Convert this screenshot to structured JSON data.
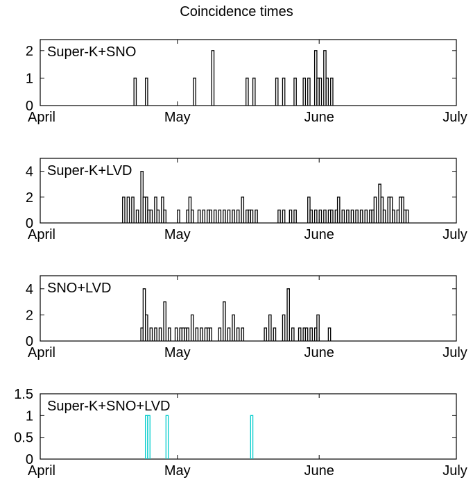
{
  "title": "Coincidence times",
  "chart_data": [
    {
      "type": "step",
      "label": "Super-K+SNO",
      "color": "#000000",
      "x_ticks": [
        "April",
        "May",
        "June",
        "July"
      ],
      "y_ticks": [
        "0",
        "1",
        "2"
      ],
      "ylim": [
        0,
        2.4
      ],
      "bins": [
        {
          "day": 20.5,
          "count": 1
        },
        {
          "day": 23,
          "count": 1
        },
        {
          "day": 33.5,
          "count": 1
        },
        {
          "day": 37.5,
          "count": 2
        },
        {
          "day": 45,
          "count": 1
        },
        {
          "day": 46.5,
          "count": 1
        },
        {
          "day": 51.5,
          "count": 1
        },
        {
          "day": 53,
          "count": 1
        },
        {
          "day": 55.5,
          "count": 1
        },
        {
          "day": 57.5,
          "count": 1
        },
        {
          "day": 58.5,
          "count": 1
        },
        {
          "day": 60,
          "count": 2
        },
        {
          "day": 60.5,
          "count": 1
        },
        {
          "day": 61,
          "count": 1
        },
        {
          "day": 62,
          "count": 2
        },
        {
          "day": 62.5,
          "count": 1
        },
        {
          "day": 63.5,
          "count": 1
        }
      ]
    },
    {
      "type": "step",
      "label": "Super-K+LVD",
      "color": "#000000",
      "x_ticks": [
        "April",
        "May",
        "June",
        "July"
      ],
      "y_ticks": [
        "0",
        "2",
        "4"
      ],
      "ylim": [
        0,
        5
      ],
      "bins": [
        {
          "day": 18,
          "count": 2
        },
        {
          "day": 19,
          "count": 2
        },
        {
          "day": 20,
          "count": 2
        },
        {
          "day": 21,
          "count": 1
        },
        {
          "day": 22,
          "count": 4
        },
        {
          "day": 22.5,
          "count": 2
        },
        {
          "day": 23,
          "count": 2
        },
        {
          "day": 23.5,
          "count": 1
        },
        {
          "day": 24,
          "count": 1
        },
        {
          "day": 25,
          "count": 2
        },
        {
          "day": 25.5,
          "count": 1
        },
        {
          "day": 26.5,
          "count": 2
        },
        {
          "day": 27,
          "count": 1
        },
        {
          "day": 30,
          "count": 1
        },
        {
          "day": 32,
          "count": 1
        },
        {
          "day": 32.5,
          "count": 2
        },
        {
          "day": 33,
          "count": 1
        },
        {
          "day": 34.5,
          "count": 1
        },
        {
          "day": 35.5,
          "count": 1
        },
        {
          "day": 36.5,
          "count": 1
        },
        {
          "day": 37,
          "count": 1
        },
        {
          "day": 38,
          "count": 1
        },
        {
          "day": 39,
          "count": 1
        },
        {
          "day": 40,
          "count": 1
        },
        {
          "day": 41,
          "count": 1
        },
        {
          "day": 42,
          "count": 1
        },
        {
          "day": 43,
          "count": 1
        },
        {
          "day": 44,
          "count": 2
        },
        {
          "day": 45,
          "count": 1
        },
        {
          "day": 45.5,
          "count": 1
        },
        {
          "day": 46,
          "count": 1
        },
        {
          "day": 47,
          "count": 1
        },
        {
          "day": 52,
          "count": 1
        },
        {
          "day": 53,
          "count": 1
        },
        {
          "day": 54.5,
          "count": 1
        },
        {
          "day": 55.5,
          "count": 1
        },
        {
          "day": 58.5,
          "count": 2
        },
        {
          "day": 59,
          "count": 1
        },
        {
          "day": 60,
          "count": 1
        },
        {
          "day": 61,
          "count": 1
        },
        {
          "day": 62,
          "count": 1
        },
        {
          "day": 63,
          "count": 1
        },
        {
          "day": 63.5,
          "count": 1
        },
        {
          "day": 64.5,
          "count": 1
        },
        {
          "day": 65,
          "count": 2
        },
        {
          "day": 66,
          "count": 1
        },
        {
          "day": 67,
          "count": 1
        },
        {
          "day": 68,
          "count": 1
        },
        {
          "day": 69,
          "count": 1
        },
        {
          "day": 70,
          "count": 1
        },
        {
          "day": 71,
          "count": 1
        },
        {
          "day": 72,
          "count": 1
        },
        {
          "day": 72.5,
          "count": 1
        },
        {
          "day": 73,
          "count": 2
        },
        {
          "day": 74,
          "count": 3
        },
        {
          "day": 74.5,
          "count": 2
        },
        {
          "day": 75,
          "count": 1
        },
        {
          "day": 76,
          "count": 2
        },
        {
          "day": 76.5,
          "count": 2
        },
        {
          "day": 77,
          "count": 1
        },
        {
          "day": 78,
          "count": 1
        },
        {
          "day": 78.5,
          "count": 2
        },
        {
          "day": 79,
          "count": 2
        },
        {
          "day": 79.5,
          "count": 1
        },
        {
          "day": 80,
          "count": 1
        }
      ]
    },
    {
      "type": "step",
      "label": "SNO+LVD",
      "color": "#000000",
      "x_ticks": [
        "April",
        "May",
        "June",
        "July"
      ],
      "y_ticks": [
        "0",
        "2",
        "4"
      ],
      "ylim": [
        0,
        5
      ],
      "bins": [
        {
          "day": 22,
          "count": 1
        },
        {
          "day": 22.5,
          "count": 4
        },
        {
          "day": 23,
          "count": 2
        },
        {
          "day": 24,
          "count": 1
        },
        {
          "day": 25,
          "count": 1
        },
        {
          "day": 26,
          "count": 1
        },
        {
          "day": 27,
          "count": 3
        },
        {
          "day": 28,
          "count": 1
        },
        {
          "day": 29.5,
          "count": 1
        },
        {
          "day": 30.5,
          "count": 1
        },
        {
          "day": 31,
          "count": 1
        },
        {
          "day": 31.5,
          "count": 1
        },
        {
          "day": 32,
          "count": 1
        },
        {
          "day": 33,
          "count": 2
        },
        {
          "day": 34,
          "count": 1
        },
        {
          "day": 35,
          "count": 1
        },
        {
          "day": 36,
          "count": 1
        },
        {
          "day": 36.5,
          "count": 1
        },
        {
          "day": 37,
          "count": 1
        },
        {
          "day": 39,
          "count": 1
        },
        {
          "day": 40,
          "count": 3
        },
        {
          "day": 41,
          "count": 1
        },
        {
          "day": 42,
          "count": 2
        },
        {
          "day": 43,
          "count": 1
        },
        {
          "day": 44,
          "count": 1
        },
        {
          "day": 49,
          "count": 1
        },
        {
          "day": 50,
          "count": 2
        },
        {
          "day": 51,
          "count": 1
        },
        {
          "day": 53,
          "count": 2
        },
        {
          "day": 54,
          "count": 4
        },
        {
          "day": 55,
          "count": 1
        },
        {
          "day": 56.5,
          "count": 1
        },
        {
          "day": 57.5,
          "count": 1
        },
        {
          "day": 58,
          "count": 1
        },
        {
          "day": 59,
          "count": 1
        },
        {
          "day": 60,
          "count": 1
        },
        {
          "day": 60.5,
          "count": 2
        },
        {
          "day": 63,
          "count": 1
        }
      ]
    },
    {
      "type": "step",
      "label": "Super-K+SNO+LVD",
      "color": "#00cccc",
      "x_ticks": [
        "April",
        "May",
        "June",
        "July"
      ],
      "y_ticks": [
        "0",
        "0.5",
        "1",
        "1.5"
      ],
      "ylim": [
        0,
        1.5
      ],
      "bins": [
        {
          "day": 23,
          "count": 1
        },
        {
          "day": 23.5,
          "count": 1
        },
        {
          "day": 27.5,
          "count": 1
        },
        {
          "day": 46,
          "count": 1
        }
      ]
    }
  ]
}
